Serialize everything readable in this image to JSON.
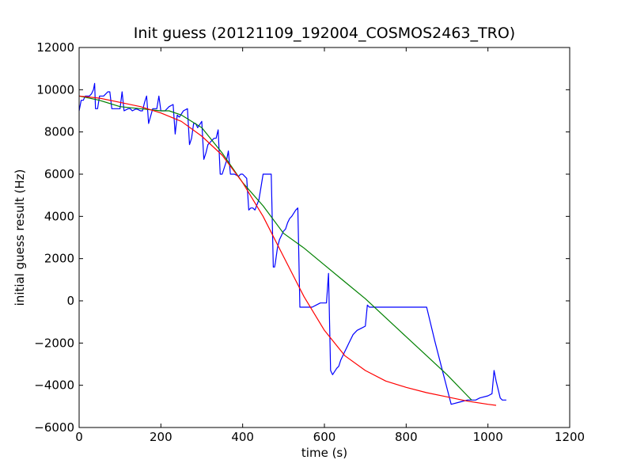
{
  "chart_data": {
    "type": "line",
    "title": "Init guess (20121109_192004_COSMOS2463_TRO)",
    "xlabel": "time (s)",
    "ylabel": "initial guess result (Hz)",
    "xlim": [
      0,
      1200
    ],
    "ylim": [
      -6000,
      12000
    ],
    "xticks": [
      0,
      200,
      400,
      600,
      800,
      1000,
      1200
    ],
    "yticks": [
      -6000,
      -4000,
      -2000,
      0,
      2000,
      4000,
      6000,
      8000,
      10000,
      12000
    ],
    "grid": false,
    "legend": "none",
    "series": [
      {
        "color": "#0000ff",
        "x": [
          0,
          5,
          10,
          15,
          25,
          30,
          35,
          38,
          40,
          45,
          50,
          60,
          65,
          70,
          75,
          80,
          90,
          100,
          105,
          110,
          120,
          125,
          130,
          140,
          150,
          155,
          160,
          165,
          170,
          180,
          190,
          195,
          200,
          210,
          220,
          230,
          235,
          240,
          245,
          255,
          265,
          270,
          275,
          280,
          285,
          290,
          300,
          305,
          310,
          315,
          320,
          330,
          335,
          340,
          345,
          350,
          360,
          365,
          370,
          380,
          390,
          395,
          400,
          410,
          415,
          420,
          425,
          430,
          440,
          450,
          455,
          460,
          470,
          475,
          478,
          480,
          485,
          490,
          500,
          505,
          510,
          515,
          520,
          530,
          535,
          540,
          545,
          550,
          570,
          580,
          590,
          600,
          605,
          610,
          615,
          620,
          630,
          635,
          640,
          645,
          650,
          655,
          660,
          670,
          680,
          690,
          700,
          705,
          710,
          720,
          740,
          760,
          800,
          850,
          870,
          890,
          910,
          930,
          950,
          970,
          980,
          1000,
          1010,
          1015,
          1020,
          1030,
          1035,
          1040,
          1045
        ],
        "y": [
          9000,
          9500,
          9500,
          9700,
          9700,
          9800,
          10000,
          10300,
          9100,
          9100,
          9700,
          9700,
          9800,
          9900,
          9900,
          9100,
          9100,
          9100,
          9900,
          9000,
          9100,
          9100,
          9000,
          9100,
          9000,
          9000,
          9400,
          9700,
          8400,
          9100,
          9100,
          9700,
          9000,
          9000,
          9200,
          9300,
          7900,
          8800,
          8700,
          9000,
          9100,
          7400,
          7700,
          8400,
          8400,
          8200,
          8500,
          6700,
          7000,
          7400,
          7500,
          7700,
          7700,
          8100,
          6000,
          6000,
          6600,
          7100,
          6000,
          6000,
          5900,
          6000,
          6000,
          5800,
          4300,
          4400,
          4400,
          4300,
          4800,
          6000,
          6000,
          6000,
          6000,
          1600,
          1600,
          1800,
          2500,
          2900,
          3300,
          3400,
          3700,
          3900,
          4000,
          4300,
          4400,
          -300,
          -300,
          -300,
          -300,
          -200,
          -100,
          -100,
          -100,
          1300,
          -3300,
          -3500,
          -3200,
          -3100,
          -2800,
          -2600,
          -2400,
          -2200,
          -2000,
          -1600,
          -1400,
          -1300,
          -1200,
          -200,
          -300,
          -300,
          -300,
          -300,
          -300,
          -300,
          -1900,
          -3400,
          -4900,
          -4800,
          -4700,
          -4700,
          -4600,
          -4500,
          -4400,
          -3300,
          -3800,
          -4600,
          -4700,
          -4700,
          -4700
        ]
      },
      {
        "color": "#008000",
        "x": [
          0,
          50,
          100,
          150,
          200,
          220,
          250,
          300,
          350,
          400,
          450,
          500,
          550,
          600,
          650,
          700,
          750,
          800,
          850,
          900,
          950,
          960
        ],
        "y": [
          9700,
          9500,
          9200,
          9100,
          9000,
          9000,
          8800,
          8200,
          7000,
          5600,
          4500,
          3200,
          2500,
          1700,
          900,
          100,
          -800,
          -1700,
          -2600,
          -3500,
          -4500,
          -4700
        ]
      },
      {
        "color": "#ff0000",
        "x": [
          0,
          50,
          100,
          150,
          200,
          250,
          300,
          350,
          400,
          450,
          500,
          550,
          600,
          650,
          700,
          750,
          800,
          850,
          900,
          950,
          1000,
          1020
        ],
        "y": [
          9700,
          9600,
          9400,
          9200,
          8900,
          8500,
          7800,
          6900,
          5600,
          4000,
          2100,
          200,
          -1400,
          -2600,
          -3300,
          -3800,
          -4100,
          -4350,
          -4550,
          -4750,
          -4900,
          -4950
        ]
      }
    ]
  }
}
